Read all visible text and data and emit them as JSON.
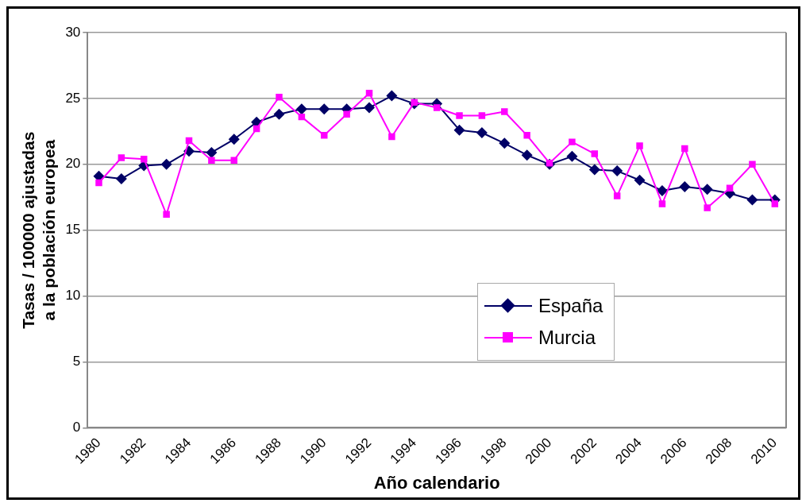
{
  "chart_data": {
    "type": "line",
    "xlabel": "Año calendario",
    "ylabel": "Tasas / 100000 ajustadas a la población europea",
    "categories": [
      "1980",
      null,
      "1982",
      null,
      "1984",
      null,
      "1986",
      null,
      "1988",
      null,
      "1990",
      null,
      "1992",
      null,
      "1994",
      null,
      "1996",
      null,
      "1998",
      null,
      "2000",
      null,
      "2002",
      null,
      "2004",
      null,
      "2006",
      null,
      "2008",
      null,
      "2010"
    ],
    "series": [
      {
        "name": "España",
        "color": "#000066",
        "marker": "diamond",
        "values": [
          19.1,
          18.9,
          19.9,
          20.0,
          21.0,
          20.9,
          21.9,
          23.2,
          23.8,
          24.2,
          24.2,
          24.2,
          24.3,
          25.2,
          24.6,
          24.6,
          22.6,
          22.4,
          21.6,
          20.7,
          20.0,
          20.6,
          19.6,
          19.5,
          18.8,
          18.0,
          18.3,
          18.1,
          17.8,
          17.3,
          17.3
        ]
      },
      {
        "name": "Murcia",
        "color": "#ff00ff",
        "marker": "square",
        "values": [
          18.6,
          20.5,
          20.4,
          16.2,
          21.8,
          20.3,
          20.3,
          22.7,
          25.1,
          23.6,
          22.2,
          23.8,
          25.4,
          22.1,
          24.7,
          24.3,
          23.7,
          23.7,
          24.0,
          22.2,
          20.1,
          21.7,
          20.8,
          17.6,
          21.4,
          17.0,
          21.2,
          16.7,
          18.2,
          20.0,
          17.0
        ]
      }
    ],
    "ylim": [
      0,
      30
    ],
    "yticks": [
      0,
      5,
      10,
      15,
      20,
      25,
      30
    ],
    "grid": "y",
    "legend": "bottom right",
    "line_style": "solid"
  }
}
